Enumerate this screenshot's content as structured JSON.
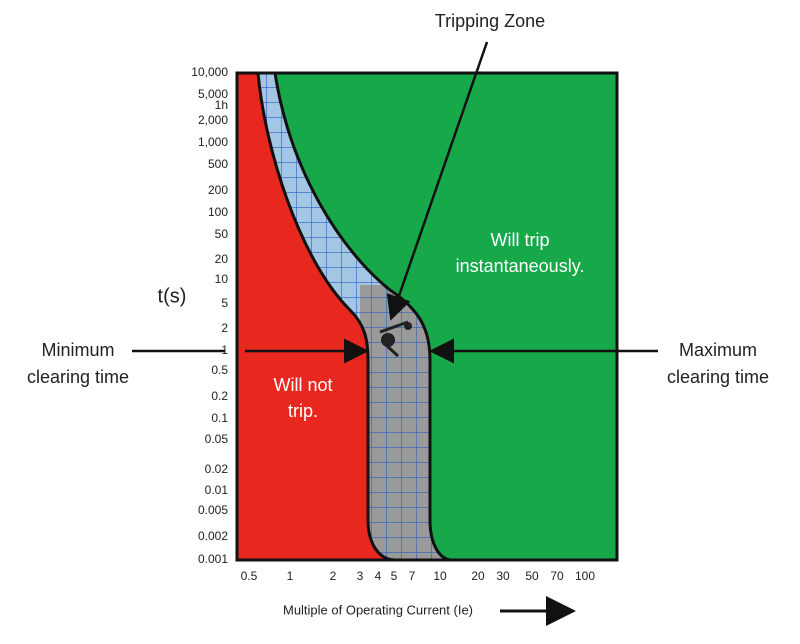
{
  "title": "Tripping Zone",
  "y_axis_label": "t(s)",
  "x_axis_label": "Multiple of Operating Current (Ie)",
  "y_ticks": [
    "10,000",
    "5,000",
    "1h",
    "2,000",
    "1,000",
    "500",
    "200",
    "100",
    "50",
    "20",
    "10",
    "5",
    "2",
    "1",
    "0.5",
    "0.2",
    "0.1",
    "0.05",
    "0.02",
    "0.01",
    "0.005",
    "0.002",
    "0.001"
  ],
  "x_ticks": [
    "0.5",
    "1",
    "2",
    "3",
    "4",
    "5",
    "7",
    "10",
    "20",
    "30",
    "50",
    "70",
    "100"
  ],
  "regions": {
    "will_not_trip": [
      "Will not",
      "trip."
    ],
    "will_trip": [
      "Will trip",
      "instantaneously."
    ]
  },
  "annotations": {
    "minimum": [
      "Minimum",
      "clearing time"
    ],
    "maximum": [
      "Maximum",
      "clearing time"
    ]
  }
}
